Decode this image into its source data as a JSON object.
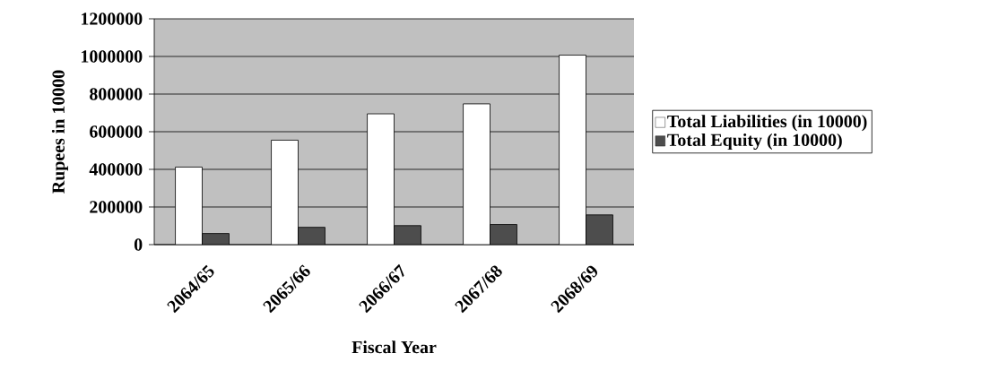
{
  "chart_data": {
    "type": "bar",
    "xlabel": "Fiscal Year",
    "ylabel": "Rupees in 10000",
    "categories": [
      "2064/65",
      "2065/66",
      "2066/67",
      "2067/68",
      "2068/69"
    ],
    "series": [
      {
        "name": "Total Liabilities (in 10000)",
        "color": "#ffffff",
        "values": [
          412000,
          555000,
          695000,
          748000,
          1007000
        ]
      },
      {
        "name": "Total Equity (in 10000)",
        "color": "#4d4d4d",
        "values": [
          59000,
          92000,
          101000,
          107000,
          158000
        ]
      }
    ],
    "ylim": [
      0,
      1200000
    ],
    "yticks": [
      0,
      200000,
      400000,
      600000,
      800000,
      1000000,
      1200000
    ],
    "grid": "y",
    "legend": "right"
  }
}
